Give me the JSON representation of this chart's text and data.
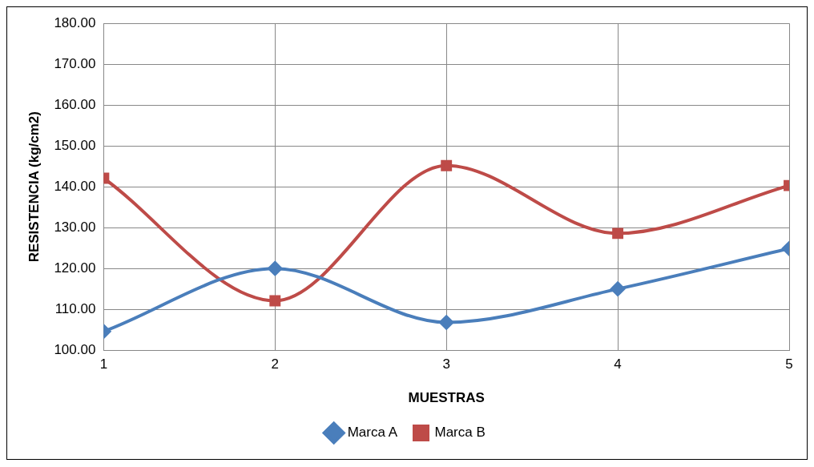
{
  "chart_data": {
    "type": "line",
    "xlabel": "MUESTRAS",
    "ylabel": "RESISTENCIA (kg/cm2)",
    "x": [
      1,
      2,
      3,
      4,
      5
    ],
    "xlim": [
      1,
      5
    ],
    "xticks": [
      1,
      2,
      3,
      4,
      5
    ],
    "ylim": [
      100,
      180
    ],
    "yticks": [
      {
        "value": 100,
        "label": "100.00"
      },
      {
        "value": 110,
        "label": "110.00"
      },
      {
        "value": 120,
        "label": "120.00"
      },
      {
        "value": 130,
        "label": "130.00"
      },
      {
        "value": 140,
        "label": "140.00"
      },
      {
        "value": 150,
        "label": "150.00"
      },
      {
        "value": 160,
        "label": "160.00"
      },
      {
        "value": 170,
        "label": "170.00"
      },
      {
        "value": 180,
        "label": "180.00"
      }
    ],
    "series": [
      {
        "name": "Marca A",
        "color": "#4a7ebb",
        "values": [
          104.6,
          120.0,
          106.8,
          115.0,
          124.9
        ],
        "marker": "diamond"
      },
      {
        "name": "Marca B",
        "color": "#be4b48",
        "values": [
          142.1,
          112.1,
          145.2,
          128.6,
          140.3
        ],
        "marker": "square"
      }
    ],
    "grid": true,
    "legend": "bottom",
    "line_style": "solid"
  }
}
